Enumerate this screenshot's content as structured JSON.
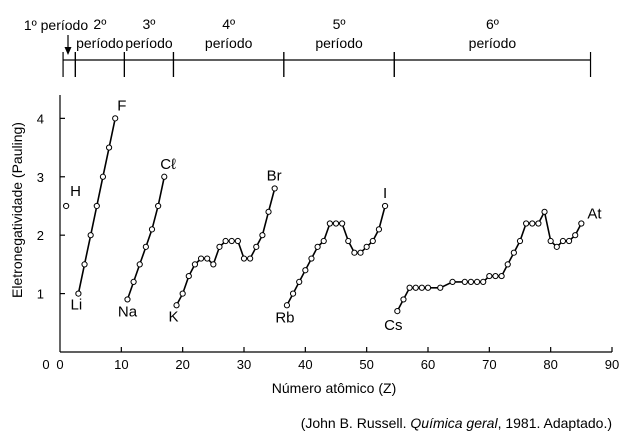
{
  "source": {
    "prefix": "(John B. Russell. ",
    "title": "Química geral",
    "suffix": ", 1981. Adaptado.)"
  },
  "periods": [
    {
      "label_top": "1º período",
      "label_bottom": "",
      "start": 1,
      "end": 2
    },
    {
      "label_top": "2º",
      "label_bottom": "período",
      "start": 3,
      "end": 10
    },
    {
      "label_top": "3º",
      "label_bottom": "período",
      "start": 11,
      "end": 18
    },
    {
      "label_top": "4º",
      "label_bottom": "período",
      "start": 19,
      "end": 36
    },
    {
      "label_top": "5º",
      "label_bottom": "período",
      "start": 37,
      "end": 54
    },
    {
      "label_top": "6º",
      "label_bottom": "período",
      "start": 55,
      "end": 86
    }
  ],
  "chart_data": {
    "type": "line",
    "xlabel": "Número atômico (Z)",
    "ylabel": "Eletronegatividade (Pauling)",
    "xlim": [
      0,
      90
    ],
    "ylim": [
      0,
      4.4
    ],
    "x_ticks": [
      0,
      10,
      20,
      30,
      40,
      50,
      60,
      70,
      80,
      90
    ],
    "y_ticks": [
      1,
      2,
      3,
      4
    ],
    "grid": false,
    "series": [
      {
        "name": "",
        "x": [
          1
        ],
        "y": [
          2.5
        ]
      },
      {
        "name": "",
        "x": [
          3,
          4,
          5,
          6,
          7,
          8,
          9
        ],
        "y": [
          1.0,
          1.5,
          2.0,
          2.5,
          3.0,
          3.5,
          4.0
        ]
      },
      {
        "name": "",
        "x": [
          11,
          12,
          13,
          14,
          15,
          16,
          17
        ],
        "y": [
          0.9,
          1.2,
          1.5,
          1.8,
          2.1,
          2.5,
          3.0
        ]
      },
      {
        "name": "",
        "x": [
          19,
          20,
          21,
          22,
          23,
          24,
          25,
          26,
          27,
          28,
          29,
          30,
          31,
          32,
          33,
          34,
          35
        ],
        "y": [
          0.8,
          1.0,
          1.3,
          1.5,
          1.6,
          1.6,
          1.5,
          1.8,
          1.9,
          1.9,
          1.9,
          1.6,
          1.6,
          1.8,
          2.0,
          2.4,
          2.8
        ]
      },
      {
        "name": "",
        "x": [
          37,
          38,
          39,
          40,
          41,
          42,
          43,
          44,
          45,
          46,
          47,
          48,
          49,
          50,
          51,
          52,
          53
        ],
        "y": [
          0.8,
          1.0,
          1.2,
          1.4,
          1.6,
          1.8,
          1.9,
          2.2,
          2.2,
          2.2,
          1.9,
          1.7,
          1.7,
          1.8,
          1.9,
          2.1,
          2.5
        ]
      },
      {
        "name": "",
        "x": [
          55,
          56,
          57,
          58,
          59,
          60,
          62,
          64,
          66,
          67,
          68,
          69,
          70,
          71,
          72,
          73,
          74,
          75,
          76,
          77,
          78,
          79,
          80,
          81,
          82,
          83,
          84,
          85
        ],
        "y": [
          0.7,
          0.9,
          1.1,
          1.1,
          1.1,
          1.1,
          1.1,
          1.2,
          1.2,
          1.2,
          1.2,
          1.2,
          1.3,
          1.3,
          1.3,
          1.5,
          1.7,
          1.9,
          2.2,
          2.2,
          2.2,
          2.4,
          1.9,
          1.8,
          1.9,
          1.9,
          2.0,
          2.2
        ]
      }
    ],
    "point_labels": [
      {
        "text": "H",
        "x": 1,
        "y": 2.5
      },
      {
        "text": "Li",
        "x": 3,
        "y": 1.0
      },
      {
        "text": "F",
        "x": 9,
        "y": 4.0
      },
      {
        "text": "Na",
        "x": 11,
        "y": 0.9
      },
      {
        "text": "Cℓ",
        "x": 17,
        "y": 3.0
      },
      {
        "text": "K",
        "x": 19,
        "y": 0.8
      },
      {
        "text": "Br",
        "x": 35,
        "y": 2.8
      },
      {
        "text": "Rb",
        "x": 37,
        "y": 0.8
      },
      {
        "text": "I",
        "x": 53,
        "y": 2.5
      },
      {
        "text": "Cs",
        "x": 55,
        "y": 0.7
      },
      {
        "text": "At",
        "x": 85,
        "y": 2.2
      }
    ]
  }
}
